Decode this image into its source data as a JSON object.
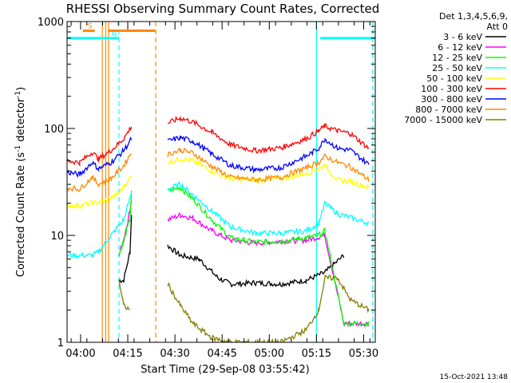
{
  "chart_data": {
    "type": "line",
    "title": "RHESSI Observing Summary Count Rates, Corrected",
    "xlabel": "Start Time (29-Sep-08 03:55:42)",
    "ylabel_parts": [
      "Corrected Count Rate (s",
      "-1",
      " detector",
      "-1",
      ")"
    ],
    "y_scale": "log",
    "ylim": [
      1,
      1000
    ],
    "xlim_min": [
      0,
      98
    ],
    "yticks": [
      {
        "value": 1,
        "label": "1"
      },
      {
        "value": 10,
        "label": "10"
      },
      {
        "value": 100,
        "label": "100"
      },
      {
        "value": 1000,
        "label": "1000"
      }
    ],
    "xticks": [
      {
        "min": 4.3,
        "label": "04:00"
      },
      {
        "min": 19.3,
        "label": "04:15"
      },
      {
        "min": 34.3,
        "label": "04:30"
      },
      {
        "min": 49.3,
        "label": "04:45"
      },
      {
        "min": 64.3,
        "label": "05:00"
      },
      {
        "min": 79.3,
        "label": "05:15"
      },
      {
        "min": 94.3,
        "label": "05:30"
      }
    ],
    "legend_header": [
      "Det 1,3,4,5,6,9,",
      "Att 0"
    ],
    "legend_placement": "right",
    "series": [
      {
        "name": "3 - 6 keV",
        "color": "#000000",
        "points": [
          [
            16.5,
            3.8
          ],
          [
            18,
            3.8
          ],
          [
            20,
            7
          ],
          [
            20.5,
            16
          ],
          [
            32,
            8
          ],
          [
            36,
            6.5
          ],
          [
            42,
            6
          ],
          [
            48,
            4
          ],
          [
            52,
            3.5
          ],
          [
            60,
            3.6
          ],
          [
            68,
            3.5
          ],
          [
            76,
            3.8
          ],
          [
            82,
            4.5
          ],
          [
            88,
            6.5
          ]
        ]
      },
      {
        "name": "6 - 12 keV",
        "color": "#ff00ff",
        "points": [
          [
            16.5,
            6.5
          ],
          [
            18,
            9
          ],
          [
            20,
            17
          ],
          [
            20.5,
            22
          ],
          [
            32,
            14
          ],
          [
            36,
            15.5
          ],
          [
            40,
            14.5
          ],
          [
            46,
            11
          ],
          [
            52,
            9
          ],
          [
            60,
            8.5
          ],
          [
            68,
            8.8
          ],
          [
            76,
            9
          ],
          [
            82,
            10
          ],
          [
            88,
            1.5
          ],
          [
            96,
            1.5
          ]
        ]
      },
      {
        "name": "12 - 25 keV",
        "color": "#00ff00",
        "points": [
          [
            16.5,
            6.5
          ],
          [
            18,
            9
          ],
          [
            20,
            14
          ],
          [
            20.5,
            25
          ],
          [
            32,
            26
          ],
          [
            36,
            28
          ],
          [
            40,
            22
          ],
          [
            46,
            14
          ],
          [
            52,
            9.5
          ],
          [
            60,
            8.6
          ],
          [
            68,
            8.8
          ],
          [
            76,
            9.5
          ],
          [
            80,
            10
          ],
          [
            82,
            11
          ],
          [
            88,
            1.5
          ],
          [
            96,
            1.5
          ]
        ]
      },
      {
        "name": "25 - 50 keV",
        "color": "#00ffff",
        "points": [
          [
            0,
            6.5
          ],
          [
            8,
            6.5
          ],
          [
            10,
            7
          ],
          [
            14,
            10
          ],
          [
            18,
            14
          ],
          [
            20.5,
            25
          ],
          [
            32,
            27
          ],
          [
            36,
            30
          ],
          [
            40,
            24
          ],
          [
            46,
            17
          ],
          [
            52,
            12
          ],
          [
            60,
            10.5
          ],
          [
            68,
            10.5
          ],
          [
            76,
            11
          ],
          [
            80,
            13
          ],
          [
            82,
            20
          ],
          [
            86,
            16
          ],
          [
            96,
            13
          ]
        ]
      },
      {
        "name": "50 - 100 keV",
        "color": "#ffff00",
        "points": [
          [
            0,
            19
          ],
          [
            4,
            19
          ],
          [
            8,
            20
          ],
          [
            12,
            21
          ],
          [
            16,
            24
          ],
          [
            20.5,
            36
          ],
          [
            32,
            48
          ],
          [
            36,
            52
          ],
          [
            40,
            50
          ],
          [
            46,
            40
          ],
          [
            52,
            34
          ],
          [
            60,
            33
          ],
          [
            68,
            34
          ],
          [
            76,
            38
          ],
          [
            80,
            42
          ],
          [
            82,
            45
          ],
          [
            86,
            33
          ],
          [
            90,
            32
          ],
          [
            96,
            28
          ]
        ]
      },
      {
        "name": "100 - 300 keV",
        "color": "#ff0000",
        "points": [
          [
            0,
            50
          ],
          [
            4,
            48
          ],
          [
            8,
            60
          ],
          [
            10,
            52
          ],
          [
            14,
            62
          ],
          [
            18,
            80
          ],
          [
            20.5,
            105
          ],
          [
            32,
            112
          ],
          [
            36,
            125
          ],
          [
            40,
            115
          ],
          [
            46,
            92
          ],
          [
            52,
            70
          ],
          [
            60,
            62
          ],
          [
            68,
            66
          ],
          [
            76,
            80
          ],
          [
            80,
            95
          ],
          [
            82,
            105
          ],
          [
            86,
            95
          ],
          [
            90,
            90
          ],
          [
            96,
            65
          ]
        ]
      },
      {
        "name": "300 - 800 keV",
        "color": "#0000ff",
        "points": [
          [
            0,
            39
          ],
          [
            4,
            37
          ],
          [
            8,
            48
          ],
          [
            10,
            42
          ],
          [
            14,
            48
          ],
          [
            18,
            62
          ],
          [
            20.5,
            80
          ],
          [
            32,
            76
          ],
          [
            36,
            82
          ],
          [
            40,
            76
          ],
          [
            46,
            58
          ],
          [
            52,
            45
          ],
          [
            60,
            41
          ],
          [
            68,
            43
          ],
          [
            76,
            55
          ],
          [
            80,
            65
          ],
          [
            82,
            80
          ],
          [
            86,
            65
          ],
          [
            90,
            63
          ],
          [
            96,
            46
          ]
        ]
      },
      {
        "name": "800 - 7000 keV",
        "color": "#ff8800",
        "points": [
          [
            0,
            28
          ],
          [
            4,
            27
          ],
          [
            8,
            35
          ],
          [
            10,
            30
          ],
          [
            14,
            34
          ],
          [
            18,
            45
          ],
          [
            20.5,
            60
          ],
          [
            32,
            57
          ],
          [
            36,
            63
          ],
          [
            40,
            59
          ],
          [
            46,
            44
          ],
          [
            52,
            35
          ],
          [
            60,
            33
          ],
          [
            68,
            35
          ],
          [
            76,
            43
          ],
          [
            80,
            48
          ],
          [
            82,
            55
          ],
          [
            86,
            48
          ],
          [
            90,
            44
          ],
          [
            96,
            33
          ]
        ]
      },
      {
        "name": "7000 - 15000 keV",
        "color": "#808000",
        "points": [
          [
            16.5,
            3.8
          ],
          [
            18,
            2.2
          ],
          [
            20,
            2
          ],
          [
            32,
            3.5
          ],
          [
            36,
            2.2
          ],
          [
            40,
            1.5
          ],
          [
            46,
            1.1
          ],
          [
            52,
            1
          ],
          [
            60,
            1
          ],
          [
            68,
            1
          ],
          [
            76,
            1.3
          ],
          [
            80,
            2
          ],
          [
            82,
            4
          ],
          [
            86,
            4
          ],
          [
            90,
            2.5
          ],
          [
            96,
            2
          ]
        ]
      }
    ],
    "flags": [
      {
        "label": "S",
        "color": "#ff8800",
        "x_start": 5,
        "x_end": 8.8,
        "value": 820
      },
      {
        "label": "N",
        "color": "#00ffff",
        "x_start": 0,
        "x_end": 16.5,
        "value": 700
      },
      {
        "label": "",
        "color": "#ff8800",
        "x_start": 13,
        "x_end": 28,
        "value": 820
      },
      {
        "label": "",
        "color": "#00ffff",
        "x_start": 80.5,
        "x_end": 98,
        "value": 700
      }
    ],
    "vlines": [
      {
        "min": 11.2,
        "color": "#ff8800",
        "dash": false
      },
      {
        "min": 12.3,
        "color": "#ff8800",
        "dash": false
      },
      {
        "min": 13.2,
        "color": "#ff8800",
        "dash": false
      },
      {
        "min": 16.5,
        "color": "#00ffff",
        "dash": true
      },
      {
        "min": 28.2,
        "color": "#ff8800",
        "dash": true
      },
      {
        "min": 79.3,
        "color": "#00ffff",
        "dash": false
      },
      {
        "min": 97.2,
        "color": "#00ffff",
        "dash": true
      }
    ],
    "footer_date": "15-Oct-2021 13:48"
  }
}
